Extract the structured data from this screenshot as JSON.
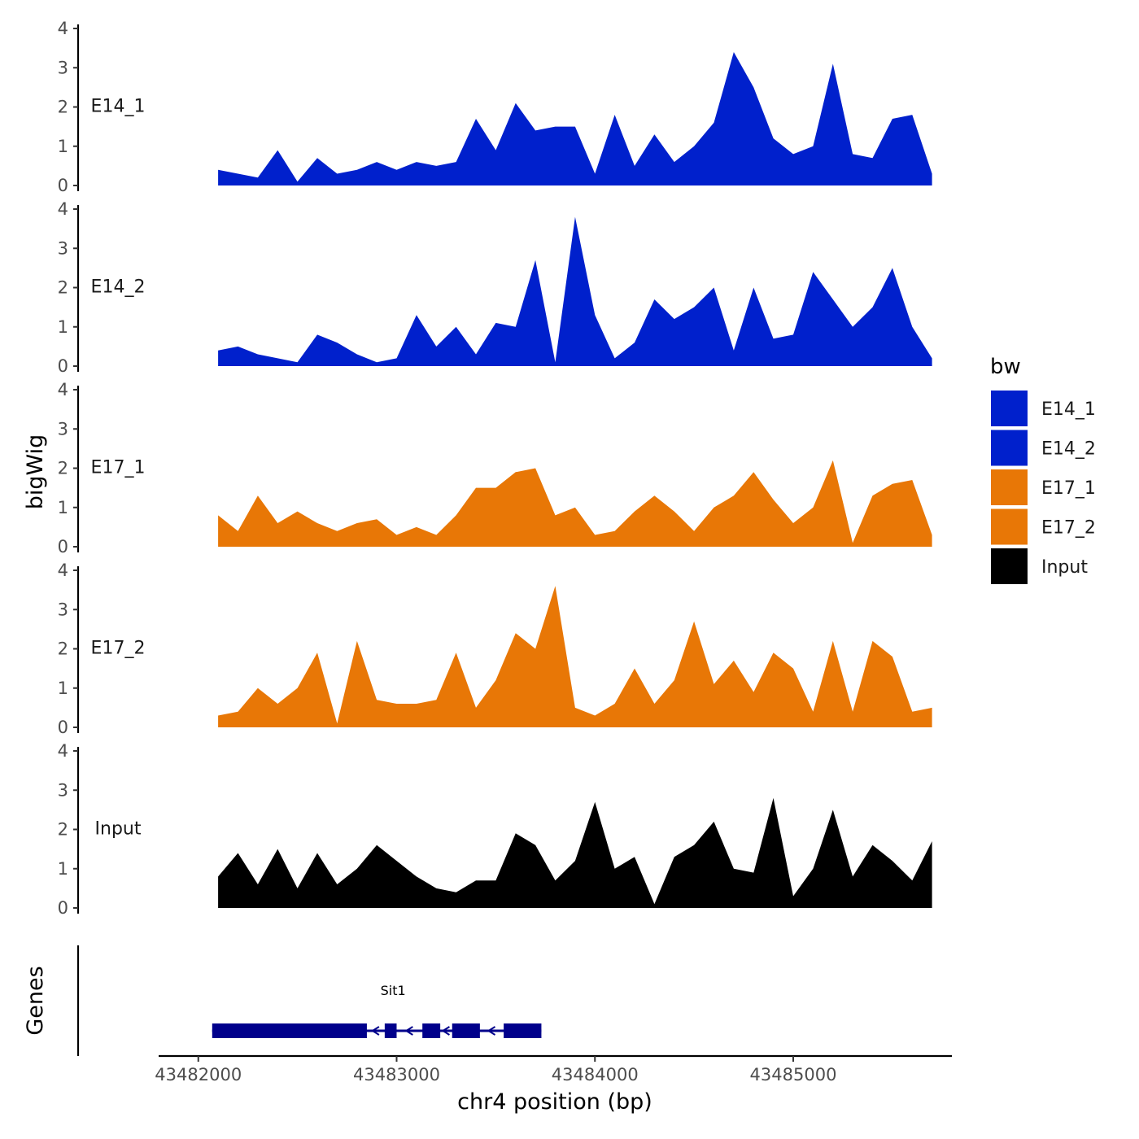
{
  "chart_data": {
    "type": "area",
    "title": "",
    "ylabel": "bigWig",
    "xlabel": "chr4 position (bp)",
    "genes_panel_label": "Genes",
    "ylim": [
      0,
      4
    ],
    "y_ticks": [
      "0",
      "1",
      "2",
      "3",
      "4"
    ],
    "xlim": [
      43481800,
      43485800
    ],
    "x_ticks": [
      {
        "value": 43482000,
        "label": "43482000"
      },
      {
        "value": 43483000,
        "label": "43483000"
      },
      {
        "value": 43484000,
        "label": "43484000"
      },
      {
        "value": 43485000,
        "label": "43485000"
      }
    ],
    "legend": {
      "title": "bw",
      "items": [
        {
          "label": "E14_1",
          "color": "#0020cc"
        },
        {
          "label": "E14_2",
          "color": "#0020cc"
        },
        {
          "label": "E17_1",
          "color": "#e87706"
        },
        {
          "label": "E17_2",
          "color": "#e87706"
        },
        {
          "label": "Input",
          "color": "#000000"
        }
      ]
    },
    "x_positions": [
      43482100,
      43482200,
      43482300,
      43482400,
      43482500,
      43482600,
      43482700,
      43482800,
      43482900,
      43483000,
      43483100,
      43483200,
      43483300,
      43483400,
      43483500,
      43483600,
      43483700,
      43483800,
      43483900,
      43484000,
      43484100,
      43484200,
      43484300,
      43484400,
      43484500,
      43484600,
      43484700,
      43484800,
      43484900,
      43485000,
      43485100,
      43485200,
      43485300,
      43485400,
      43485500,
      43485600,
      43485700
    ],
    "series": [
      {
        "name": "E14_1",
        "color": "#0020cc",
        "values": [
          0.4,
          0.3,
          0.2,
          0.9,
          0.1,
          0.7,
          0.3,
          0.4,
          0.6,
          0.4,
          0.6,
          0.5,
          0.6,
          1.7,
          0.9,
          2.1,
          1.4,
          1.5,
          1.5,
          0.3,
          1.8,
          0.5,
          1.3,
          0.6,
          1.0,
          1.6,
          3.4,
          2.5,
          1.2,
          0.8,
          1.0,
          3.1,
          0.8,
          0.7,
          1.7,
          1.8,
          0.3
        ]
      },
      {
        "name": "E14_2",
        "color": "#0020cc",
        "values": [
          0.4,
          0.5,
          0.3,
          0.2,
          0.1,
          0.8,
          0.6,
          0.3,
          0.1,
          0.2,
          1.3,
          0.5,
          1.0,
          0.3,
          1.1,
          1.0,
          2.7,
          0.1,
          3.8,
          1.3,
          0.2,
          0.6,
          1.7,
          1.2,
          1.5,
          2.0,
          0.4,
          2.0,
          0.7,
          0.8,
          2.4,
          1.7,
          1.0,
          1.5,
          2.5,
          1.0,
          0.2
        ]
      },
      {
        "name": "E17_1",
        "color": "#e87706",
        "values": [
          0.8,
          0.4,
          1.3,
          0.6,
          0.9,
          0.6,
          0.4,
          0.6,
          0.7,
          0.3,
          0.5,
          0.3,
          0.8,
          1.5,
          1.5,
          1.9,
          2.0,
          0.8,
          1.0,
          0.3,
          0.4,
          0.9,
          1.3,
          0.9,
          0.4,
          1.0,
          1.3,
          1.9,
          1.2,
          0.6,
          1.0,
          2.2,
          0.1,
          1.3,
          1.6,
          1.7,
          0.3
        ]
      },
      {
        "name": "E17_2",
        "color": "#e87706",
        "values": [
          0.3,
          0.4,
          1.0,
          0.6,
          1.0,
          1.9,
          0.1,
          2.2,
          0.7,
          0.6,
          0.6,
          0.7,
          1.9,
          0.5,
          1.2,
          2.4,
          2.0,
          3.6,
          0.5,
          0.3,
          0.6,
          1.5,
          0.6,
          1.2,
          2.7,
          1.1,
          1.7,
          0.9,
          1.9,
          1.5,
          0.4,
          2.2,
          0.4,
          2.2,
          1.8,
          0.4,
          0.5
        ]
      },
      {
        "name": "Input",
        "color": "#000000",
        "values": [
          0.8,
          1.4,
          0.6,
          1.5,
          0.5,
          1.4,
          0.6,
          1.0,
          1.6,
          1.2,
          0.8,
          0.5,
          0.4,
          0.7,
          0.7,
          1.9,
          1.6,
          0.7,
          1.2,
          2.7,
          1.0,
          1.3,
          0.1,
          1.3,
          1.6,
          2.2,
          1.0,
          0.9,
          2.8,
          0.3,
          1.0,
          2.5,
          0.8,
          1.6,
          1.2,
          0.7,
          1.7
        ]
      }
    ],
    "gene": {
      "name": "Sit1",
      "start": 43482070,
      "end": 43483730,
      "strand": "-",
      "exons": [
        {
          "start": 43482070,
          "end": 43482850
        },
        {
          "start": 43482940,
          "end": 43483000
        },
        {
          "start": 43483130,
          "end": 43483220
        },
        {
          "start": 43483280,
          "end": 43483420
        },
        {
          "start": 43483540,
          "end": 43483730
        }
      ]
    }
  }
}
